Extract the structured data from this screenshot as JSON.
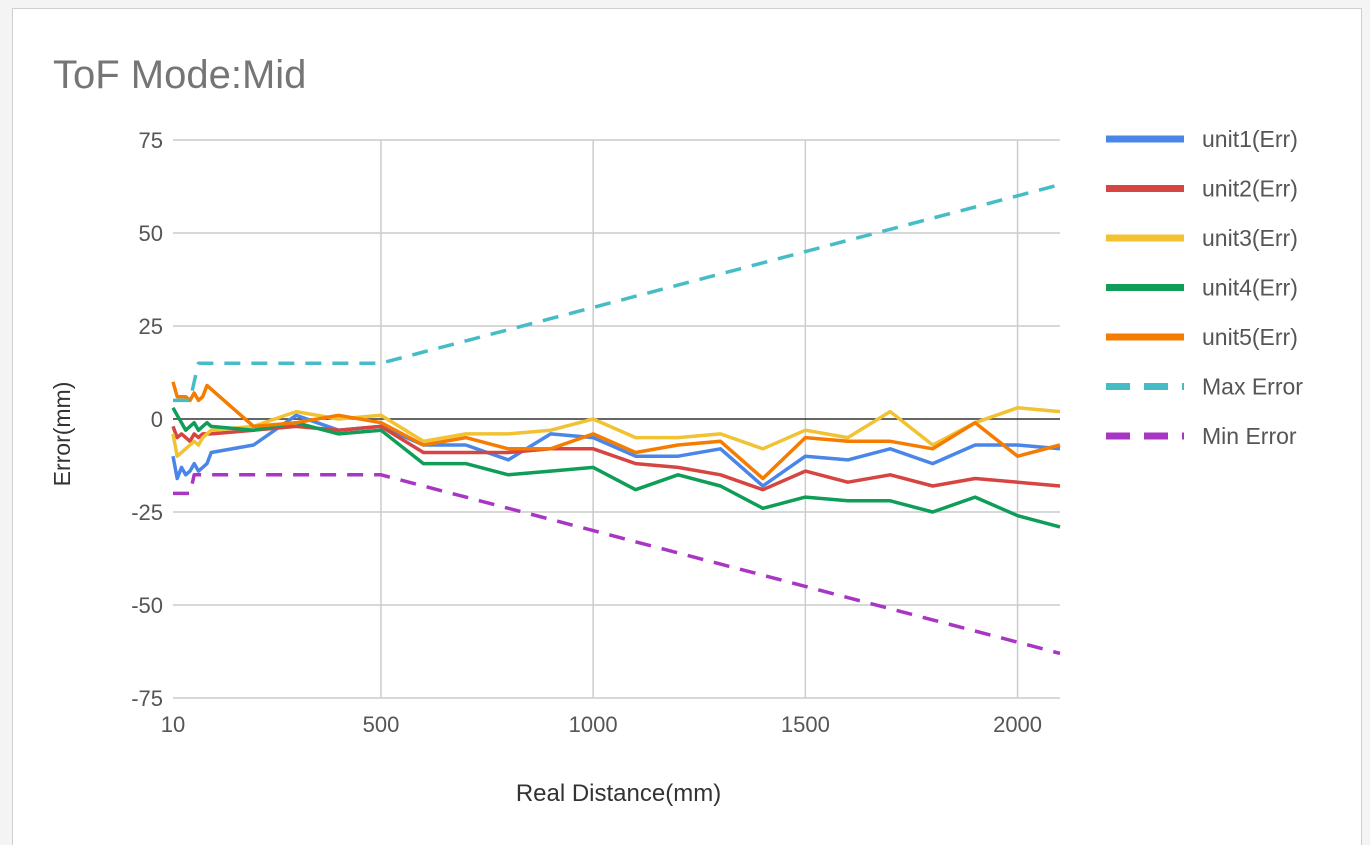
{
  "chart_data": {
    "type": "line",
    "title": "ToF Mode:Mid",
    "xlabel": "Real Distance(mm)",
    "ylabel": "Error(mm)",
    "xlim": [
      10,
      2100
    ],
    "ylim": [
      -75,
      75
    ],
    "x_ticks": [
      10,
      500,
      1000,
      1500,
      2000
    ],
    "x_tick_labels": [
      "10",
      "500",
      "1000",
      "1500",
      "2000"
    ],
    "y_ticks": [
      75,
      50,
      25,
      0,
      -25,
      -50,
      -75
    ],
    "y_tick_labels": [
      "75",
      "50",
      "25",
      "0",
      "-25",
      "-50",
      "-75"
    ],
    "grid": true,
    "legend_position": "right",
    "x": [
      10,
      20,
      30,
      40,
      50,
      60,
      70,
      80,
      90,
      100,
      200,
      300,
      400,
      500,
      600,
      700,
      800,
      900,
      1000,
      1100,
      1200,
      1300,
      1400,
      1500,
      1600,
      1700,
      1800,
      1900,
      2000,
      2100
    ],
    "series": [
      {
        "name": "unit1(Err)",
        "color": "#4a86e8",
        "style": "solid",
        "values": [
          -10,
          -16,
          -13,
          -15,
          -14,
          -12,
          -14,
          -13,
          -12,
          -9,
          -7,
          1,
          -3,
          -2,
          -7,
          -7,
          -11,
          -4,
          -5,
          -10,
          -10,
          -8,
          -18,
          -10,
          -11,
          -8,
          -12,
          -7,
          -7,
          -8
        ]
      },
      {
        "name": "unit2(Err)",
        "color": "#d64541",
        "style": "solid",
        "values": [
          -2,
          -5,
          -4,
          -5,
          -6,
          -4,
          -5,
          -4,
          -4,
          -4,
          -3,
          -2,
          -3,
          -2,
          -9,
          -9,
          -9,
          -8,
          -8,
          -12,
          -13,
          -15,
          -19,
          -14,
          -17,
          -15,
          -18,
          -16,
          -17,
          -18
        ]
      },
      {
        "name": "unit3(Err)",
        "color": "#f1c232",
        "style": "solid",
        "values": [
          -4,
          -10,
          -9,
          -8,
          -7,
          -6,
          -7,
          -5,
          -4,
          -3,
          -2,
          2,
          0,
          1,
          -6,
          -4,
          -4,
          -3,
          0,
          -5,
          -5,
          -4,
          -8,
          -3,
          -5,
          2,
          -7,
          -1,
          3,
          2
        ]
      },
      {
        "name": "unit4(Err)",
        "color": "#0f9d58",
        "style": "solid",
        "values": [
          3,
          1,
          -1,
          -3,
          -2,
          -1,
          -3,
          -2,
          -1,
          -2,
          -3,
          -1,
          -4,
          -3,
          -12,
          -12,
          -15,
          -14,
          -13,
          -19,
          -15,
          -18,
          -24,
          -21,
          -22,
          -22,
          -25,
          -21,
          -26,
          -29
        ]
      },
      {
        "name": "unit5(Err)",
        "color": "#f57c00",
        "style": "solid",
        "values": [
          10,
          6,
          6,
          6,
          5,
          7,
          5,
          6,
          9,
          8,
          -2,
          -1,
          1,
          -1,
          -7,
          -5,
          -8,
          -8,
          -4,
          -9,
          -7,
          -6,
          -16,
          -5,
          -6,
          -6,
          -8,
          -1,
          -10,
          -7
        ]
      },
      {
        "name": "Max Error",
        "color": "#46bdc6",
        "style": "dashed",
        "values": [
          5,
          5,
          5,
          5,
          5,
          10,
          15,
          15,
          15,
          15,
          15,
          15,
          15,
          15,
          18,
          21,
          24,
          27,
          30,
          33,
          36,
          39,
          42,
          45,
          48,
          51,
          54,
          57,
          60,
          63
        ]
      },
      {
        "name": "Min Error",
        "color": "#a935c4",
        "style": "dashed",
        "values": [
          -20,
          -20,
          -20,
          -20,
          -20,
          -15,
          -15,
          -15,
          -15,
          -15,
          -15,
          -15,
          -15,
          -15,
          -18,
          -21,
          -24,
          -27,
          -30,
          -33,
          -36,
          -39,
          -42,
          -45,
          -48,
          -51,
          -54,
          -57,
          -60,
          -63
        ]
      }
    ]
  }
}
